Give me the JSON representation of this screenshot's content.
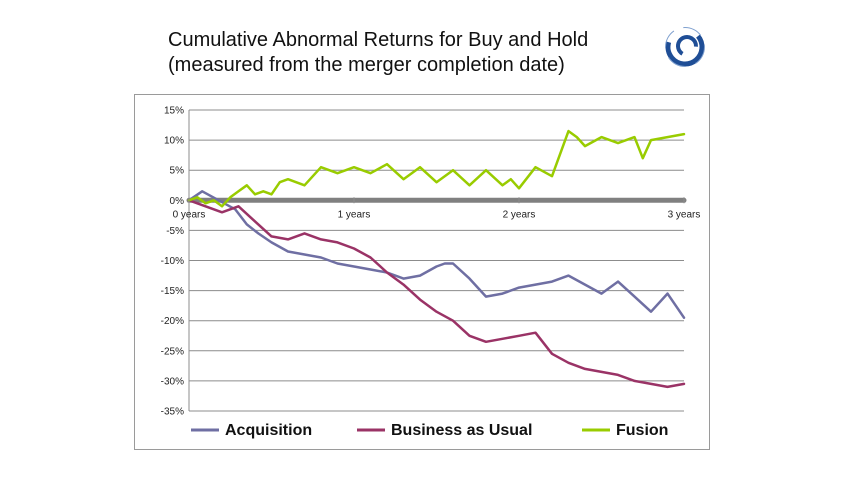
{
  "title": {
    "line1": "Cumulative Abnormal Returns for Buy and Hold",
    "line2": "(measured from the merger completion date)"
  },
  "logo": {
    "icon": "swirl-logo-icon",
    "color": "#1f4e96"
  },
  "chart_data": {
    "type": "line",
    "title": "",
    "xlabel": "",
    "ylabel": "",
    "xlim": [
      0,
      3
    ],
    "ylim": [
      -35,
      15
    ],
    "y_unit": "%",
    "y_ticks": [
      15,
      10,
      5,
      0,
      -5,
      -10,
      -15,
      -20,
      -25,
      -30,
      -35
    ],
    "y_tick_labels": [
      "15%",
      "10%",
      "5%",
      "0%",
      "-5%",
      "-10%",
      "-15%",
      "-20%",
      "-25%",
      "-30%",
      "-35%"
    ],
    "x_ticks": [
      0,
      1,
      2,
      3
    ],
    "x_tick_labels": [
      "0 years",
      "1 years",
      "2 years",
      "3 years"
    ],
    "grid": "horizontal",
    "legend_position": "bottom",
    "series": [
      {
        "name": "Acquisition",
        "color": "#6f6fa3",
        "x": [
          0,
          0.08,
          0.18,
          0.28,
          0.35,
          0.42,
          0.5,
          0.6,
          0.7,
          0.8,
          0.9,
          1.0,
          1.1,
          1.2,
          1.3,
          1.4,
          1.5,
          1.55,
          1.6,
          1.7,
          1.8,
          1.9,
          2.0,
          2.1,
          2.2,
          2.3,
          2.4,
          2.5,
          2.6,
          2.7,
          2.8,
          2.9,
          2.95,
          3.0
        ],
        "values": [
          0,
          1.5,
          0,
          -1.5,
          -4,
          -5.5,
          -7,
          -8.5,
          -9,
          -9.5,
          -10.5,
          -11,
          -11.5,
          -12,
          -13,
          -12.5,
          -11,
          -10.5,
          -10.5,
          -13,
          -16,
          -15.5,
          -14.5,
          -14,
          -13.5,
          -12.5,
          -14,
          -15.5,
          -13.5,
          -16,
          -18.5,
          -15.5,
          -17.5,
          -19.5
        ]
      },
      {
        "name": "Business as Usual",
        "color": "#9a3366",
        "x": [
          0,
          0.1,
          0.2,
          0.3,
          0.4,
          0.5,
          0.6,
          0.7,
          0.8,
          0.9,
          1.0,
          1.1,
          1.2,
          1.3,
          1.4,
          1.5,
          1.6,
          1.7,
          1.8,
          1.9,
          2.0,
          2.1,
          2.2,
          2.3,
          2.4,
          2.5,
          2.6,
          2.7,
          2.8,
          2.9,
          3.0
        ],
        "values": [
          0,
          -1,
          -2,
          -1,
          -3.5,
          -6,
          -6.5,
          -5.5,
          -6.5,
          -7,
          -8,
          -9.5,
          -12,
          -14,
          -16.5,
          -18.5,
          -20,
          -22.5,
          -23.5,
          -23,
          -22.5,
          -22,
          -25.5,
          -27,
          -28,
          -28.5,
          -29,
          -30,
          -30.5,
          -31,
          -30.5
        ]
      },
      {
        "name": "Fusion",
        "color": "#99cc00",
        "x": [
          0,
          0.05,
          0.1,
          0.15,
          0.2,
          0.25,
          0.3,
          0.35,
          0.4,
          0.45,
          0.5,
          0.55,
          0.6,
          0.7,
          0.8,
          0.9,
          1.0,
          1.1,
          1.2,
          1.3,
          1.4,
          1.5,
          1.6,
          1.7,
          1.8,
          1.9,
          1.95,
          2.0,
          2.1,
          2.2,
          2.3,
          2.35,
          2.4,
          2.5,
          2.6,
          2.7,
          2.75,
          2.8,
          2.9,
          3.0
        ],
        "values": [
          0,
          0.5,
          -0.5,
          0,
          -1,
          0.5,
          1.5,
          2.5,
          1,
          1.5,
          1,
          3,
          3.5,
          2.5,
          5.5,
          4.5,
          5.5,
          4.5,
          6,
          3.5,
          5.5,
          3,
          5,
          2.5,
          5,
          2.5,
          3.5,
          2,
          5.5,
          4,
          11.5,
          10.5,
          9,
          10.5,
          9.5,
          10.5,
          7,
          10,
          10.5,
          11
        ]
      },
      {
        "name": "",
        "color": "#808080",
        "x": [
          0,
          3
        ],
        "values": [
          0,
          0
        ]
      }
    ]
  }
}
